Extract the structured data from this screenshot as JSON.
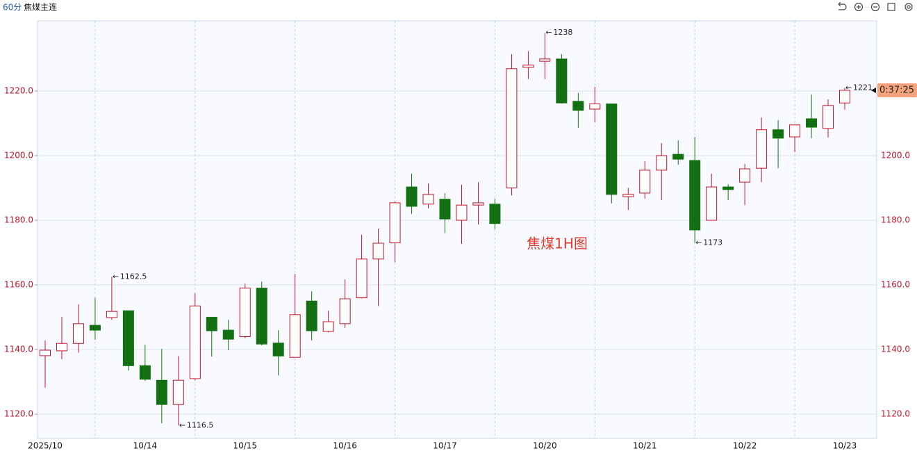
{
  "chart_data": {
    "type": "candlestick",
    "period": "60分",
    "symbol": "焦煤主连",
    "watermark": "焦煤1H图",
    "countdown": "0:37:25",
    "up_color": "#c0132b",
    "down_color": "#127012",
    "grid": true,
    "categories": [
      "2025/10",
      null,
      null,
      null,
      null,
      null,
      "10/14",
      null,
      null,
      null,
      null,
      null,
      "10/15",
      null,
      null,
      null,
      null,
      null,
      "10/16",
      null,
      null,
      null,
      null,
      null,
      "10/17",
      null,
      null,
      null,
      null,
      null,
      "10/20",
      null,
      null,
      null,
      null,
      null,
      "10/21",
      null,
      null,
      null,
      null,
      null,
      "10/22",
      null,
      null,
      null,
      null,
      null,
      "10/23"
    ],
    "open": [
      1138.1,
      1139.6,
      1141.9,
      1147.5,
      1149.9,
      1152,
      1135,
      1130.5,
      1123,
      1131,
      1150,
      1146,
      1144,
      1159,
      1142,
      1137.6,
      1155,
      1145.6,
      1148,
      1156,
      1168,
      1173,
      1190.3,
      1185,
      1186.5,
      1180,
      1184.7,
      1185,
      1190,
      1227.3,
      1229.2,
      1229.9,
      1216.8,
      1214.4,
      1216,
      1187.3,
      1188.4,
      1195.5,
      1200.4,
      1198.5,
      1180,
      1190.3,
      1191.8,
      1196.1,
      1208,
      1205.8,
      1211.4,
      1208.4,
      1216.3
    ],
    "close": [
      1139.8,
      1141.9,
      1148,
      1146,
      1151.8,
      1135,
      1130.8,
      1123,
      1130.5,
      1153.5,
      1145.8,
      1143.2,
      1159,
      1141.7,
      1138,
      1150.8,
      1145.8,
      1148.6,
      1155.7,
      1168,
      1172.9,
      1185.4,
      1184.3,
      1188,
      1180.4,
      1184.7,
      1185.4,
      1179,
      1226.9,
      1228,
      1229.9,
      1216.3,
      1214,
      1216,
      1188,
      1188,
      1195.5,
      1200,
      1198.9,
      1177,
      1190.3,
      1189.5,
      1195.9,
      1208,
      1205.4,
      1209.5,
      1208.8,
      1215.5,
      1220.2
    ],
    "high": [
      1142.8,
      1150.1,
      1154,
      1156,
      1162.5,
      1152,
      1141.5,
      1140.2,
      1138,
      1157.4,
      1150,
      1149.2,
      1160.4,
      1161,
      1146,
      1163.4,
      1158,
      1152,
      1161.7,
      1175.5,
      1177.4,
      1185.8,
      1194.4,
      1191.4,
      1188.4,
      1191,
      1191.8,
      1186.7,
      1231.4,
      1232.3,
      1238,
      1231.4,
      1219.4,
      1221.3,
      1216,
      1190,
      1198.3,
      1203.9,
      1204.7,
      1205.8,
      1194.4,
      1191.2,
      1197.4,
      1211.8,
      1211,
      1209.5,
      1218.9,
      1217.4,
      1221
    ],
    "low": [
      1128.2,
      1137,
      1139,
      1143,
      1149.2,
      1133.5,
      1130.3,
      1117.2,
      1116.5,
      1130.5,
      1137.8,
      1139.8,
      1143.5,
      1141.3,
      1132,
      1137.6,
      1142.8,
      1145.3,
      1146.7,
      1155.8,
      1153.5,
      1167,
      1182,
      1183.7,
      1176,
      1172.7,
      1178.7,
      1177.2,
      1187.7,
      1223.7,
      1223.7,
      1216.1,
      1208.6,
      1210.3,
      1185.2,
      1183.2,
      1186.7,
      1186.2,
      1197.2,
      1173,
      1180,
      1186.2,
      1184.7,
      1191.8,
      1196.1,
      1201.1,
      1205.4,
      1205.6,
      1214.2
    ],
    "high_labels": [
      4,
      30,
      48
    ],
    "low_labels": [
      8,
      39
    ],
    "ylim": [
      1112.5,
      1241.7
    ],
    "yticks": [
      {
        "value": 1120,
        "label": "1120.0"
      },
      {
        "value": 1140,
        "label": "1140.0"
      },
      {
        "value": 1160,
        "label": "1160.0"
      },
      {
        "value": 1180,
        "label": "1180.0"
      },
      {
        "value": 1200,
        "label": "1200.0"
      },
      {
        "value": 1220,
        "label": "1220.0"
      }
    ]
  }
}
